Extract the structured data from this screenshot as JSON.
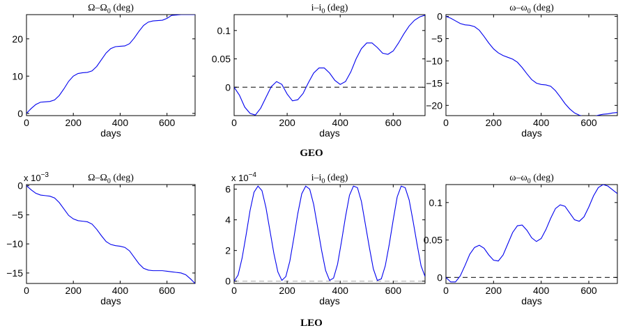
{
  "groups": [
    "GEO",
    "LEO"
  ],
  "chart_data": [
    {
      "type": "line",
      "group": "GEO",
      "title": "Ω–Ω0 (deg)",
      "title_parts": [
        "Ω–Ω",
        "0",
        " (deg)"
      ],
      "xlabel": "days",
      "ylabel": "",
      "multiplier": "",
      "xlim": [
        0,
        720
      ],
      "ylim": [
        -0.6,
        26.5
      ],
      "xticks": [
        0,
        200,
        400,
        600
      ],
      "yticks": [
        0,
        10,
        20
      ],
      "ytick_labels": [
        "0",
        "10",
        "20"
      ],
      "ref_line": null,
      "series": [
        {
          "color": "#0000ee",
          "x": [
            0,
            20,
            40,
            60,
            80,
            100,
            120,
            140,
            160,
            180,
            200,
            220,
            240,
            260,
            280,
            300,
            320,
            340,
            360,
            380,
            400,
            420,
            440,
            460,
            480,
            500,
            520,
            540,
            560,
            580,
            600,
            620,
            640,
            660,
            680,
            700,
            720
          ],
          "y": [
            0,
            1.3,
            2.4,
            3.0,
            3.1,
            3.2,
            3.6,
            4.8,
            6.6,
            8.6,
            10.0,
            10.7,
            10.9,
            11.0,
            11.4,
            12.6,
            14.4,
            16.2,
            17.4,
            17.9,
            18.0,
            18.1,
            18.7,
            20.2,
            22.0,
            23.6,
            24.5,
            24.8,
            24.9,
            25.0,
            25.5,
            26.3,
            26.4,
            26.5,
            26.5,
            26.5,
            26.5
          ]
        }
      ]
    },
    {
      "type": "line",
      "group": "GEO",
      "title": "i–i0 (deg)",
      "title_parts": [
        "i–i",
        "0",
        " (deg)"
      ],
      "xlabel": "days",
      "ylabel": "",
      "multiplier": "",
      "xlim": [
        0,
        720
      ],
      "ylim": [
        -0.05,
        0.128
      ],
      "xticks": [
        0,
        200,
        400,
        600
      ],
      "yticks": [
        0,
        0.05,
        0.1
      ],
      "ytick_labels": [
        "0",
        "0.05",
        "0.1"
      ],
      "ref_line": {
        "y": 0,
        "color": "#333333",
        "dash": "7,5"
      },
      "series": [
        {
          "color": "#0000ee",
          "x": [
            0,
            20,
            40,
            60,
            80,
            100,
            120,
            140,
            160,
            180,
            200,
            220,
            240,
            260,
            280,
            300,
            320,
            340,
            360,
            380,
            400,
            420,
            440,
            460,
            480,
            500,
            520,
            540,
            560,
            580,
            600,
            620,
            640,
            660,
            680,
            700,
            720
          ],
          "y": [
            0,
            -0.014,
            -0.035,
            -0.046,
            -0.049,
            -0.037,
            -0.018,
            0.001,
            0.01,
            0.005,
            -0.012,
            -0.024,
            -0.022,
            -0.011,
            0.008,
            0.025,
            0.034,
            0.034,
            0.025,
            0.012,
            0.005,
            0.01,
            0.027,
            0.05,
            0.068,
            0.078,
            0.078,
            0.07,
            0.06,
            0.058,
            0.064,
            0.078,
            0.094,
            0.108,
            0.118,
            0.124,
            0.127
          ]
        }
      ]
    },
    {
      "type": "line",
      "group": "GEO",
      "title": "ω–ω0 (deg)",
      "title_parts": [
        "ω–ω",
        "0",
        " (deg)"
      ],
      "xlabel": "days",
      "ylabel": "",
      "multiplier": "",
      "xlim": [
        0,
        720
      ],
      "ylim": [
        -22.3,
        0.4
      ],
      "xticks": [
        0,
        200,
        400,
        600
      ],
      "yticks": [
        0,
        -5,
        -10,
        -15,
        -20
      ],
      "ytick_labels": [
        "0",
        "−5",
        "−10",
        "−15",
        "−20"
      ],
      "ref_line": null,
      "series": [
        {
          "color": "#0000ee",
          "x": [
            0,
            20,
            40,
            60,
            80,
            100,
            120,
            140,
            160,
            180,
            200,
            220,
            240,
            260,
            280,
            300,
            320,
            340,
            360,
            380,
            400,
            420,
            440,
            460,
            480,
            500,
            520,
            540,
            560,
            580,
            600,
            620,
            640,
            660,
            680,
            700,
            720
          ],
          "y": [
            0,
            -0.4,
            -1.0,
            -1.6,
            -1.9,
            -2.0,
            -2.3,
            -3.1,
            -4.5,
            -6.0,
            -7.3,
            -8.2,
            -8.8,
            -9.2,
            -9.6,
            -10.3,
            -11.5,
            -12.9,
            -14.2,
            -15.0,
            -15.3,
            -15.4,
            -15.7,
            -16.7,
            -18.1,
            -19.6,
            -20.8,
            -21.7,
            -22.2,
            -22.5,
            -22.7,
            -22.5,
            -22.2,
            -22.0,
            -21.9,
            -21.7,
            -21.6
          ]
        }
      ]
    },
    {
      "type": "line",
      "group": "LEO",
      "title": "Ω–Ω0 (deg)",
      "title_parts": [
        "Ω–Ω",
        "0",
        " (deg)"
      ],
      "xlabel": "days",
      "ylabel": "",
      "multiplier": "x 10^-3",
      "multiplier_parts": [
        "x 10",
        "−3"
      ],
      "xlim": [
        0,
        720
      ],
      "ylim": [
        -16.8,
        0.2
      ],
      "xticks": [
        0,
        200,
        400,
        600
      ],
      "yticks": [
        0,
        -5,
        -10,
        -15
      ],
      "ytick_labels": [
        "0",
        "−5",
        "−10",
        "−15"
      ],
      "ref_line": null,
      "series": [
        {
          "color": "#0000ee",
          "x": [
            0,
            20,
            40,
            60,
            80,
            100,
            120,
            140,
            160,
            180,
            200,
            220,
            240,
            260,
            280,
            300,
            320,
            340,
            360,
            380,
            400,
            420,
            440,
            460,
            480,
            500,
            520,
            540,
            560,
            580,
            600,
            620,
            640,
            660,
            680,
            700,
            720
          ],
          "y": [
            0,
            -0.7,
            -1.3,
            -1.6,
            -1.7,
            -1.8,
            -2.1,
            -2.9,
            -4.0,
            -5.1,
            -5.7,
            -6.0,
            -6.1,
            -6.2,
            -6.6,
            -7.5,
            -8.6,
            -9.6,
            -10.1,
            -10.3,
            -10.4,
            -10.6,
            -11.2,
            -12.3,
            -13.4,
            -14.2,
            -14.5,
            -14.6,
            -14.6,
            -14.6,
            -14.7,
            -14.8,
            -14.9,
            -15.0,
            -15.3,
            -16.0,
            -16.8
          ]
        }
      ]
    },
    {
      "type": "line",
      "group": "LEO",
      "title": "i–i0 (deg)",
      "title_parts": [
        "i–i",
        "0",
        " (deg)"
      ],
      "xlabel": "days",
      "ylabel": "",
      "multiplier": "x 10^-4",
      "multiplier_parts": [
        "x 10",
        "−4"
      ],
      "xlim": [
        0,
        720
      ],
      "ylim": [
        -0.15,
        6.3
      ],
      "xticks": [
        0,
        200,
        400,
        600
      ],
      "yticks": [
        0,
        2,
        4,
        6
      ],
      "ytick_labels": [
        "0",
        "2",
        "4",
        "6"
      ],
      "ref_line": {
        "y": 0,
        "color": "#bbbbbb",
        "dash": "7,5"
      },
      "series": [
        {
          "color": "#0000ee",
          "x": [
            0,
            15,
            30,
            45,
            60,
            75,
            90,
            105,
            120,
            135,
            150,
            165,
            180,
            195,
            210,
            225,
            240,
            255,
            270,
            285,
            300,
            315,
            330,
            345,
            360,
            375,
            390,
            405,
            420,
            435,
            450,
            465,
            480,
            495,
            510,
            525,
            540,
            555,
            570,
            585,
            600,
            615,
            630,
            645,
            660,
            675,
            690,
            705,
            720
          ],
          "y": [
            0,
            0.4,
            1.5,
            3.0,
            4.6,
            5.8,
            6.2,
            5.9,
            4.8,
            3.3,
            1.8,
            0.6,
            0.05,
            0.3,
            1.3,
            2.8,
            4.4,
            5.7,
            6.2,
            6.0,
            5.0,
            3.5,
            2.0,
            0.7,
            0.05,
            0.2,
            1.1,
            2.6,
            4.2,
            5.6,
            6.2,
            6.1,
            5.2,
            3.7,
            2.2,
            0.8,
            0.05,
            0.15,
            1.0,
            2.4,
            4.0,
            5.5,
            6.2,
            6.1,
            5.3,
            3.9,
            2.4,
            1.0,
            0.3
          ]
        }
      ]
    },
    {
      "type": "line",
      "group": "LEO",
      "title": "ω–ω0 (deg)",
      "title_parts": [
        "ω–ω",
        "0",
        " (deg)"
      ],
      "xlabel": "days",
      "ylabel": "",
      "multiplier": "",
      "xlim": [
        0,
        720
      ],
      "ylim": [
        -0.008,
        0.124
      ],
      "xticks": [
        0,
        200,
        400,
        600
      ],
      "yticks": [
        0,
        0.05,
        0.1
      ],
      "ytick_labels": [
        "0",
        "0.05",
        "0.1"
      ],
      "ref_line": {
        "y": 0,
        "color": "#333333",
        "dash": "7,5"
      },
      "series": [
        {
          "color": "#0000ee",
          "x": [
            0,
            20,
            40,
            60,
            80,
            100,
            120,
            140,
            160,
            180,
            200,
            220,
            240,
            260,
            280,
            300,
            320,
            340,
            360,
            380,
            400,
            420,
            440,
            460,
            480,
            500,
            520,
            540,
            560,
            580,
            600,
            620,
            640,
            660,
            680,
            700,
            720
          ],
          "y": [
            0,
            -0.006,
            -0.006,
            0.002,
            0.016,
            0.031,
            0.04,
            0.043,
            0.039,
            0.03,
            0.023,
            0.022,
            0.03,
            0.045,
            0.06,
            0.069,
            0.07,
            0.063,
            0.053,
            0.048,
            0.052,
            0.064,
            0.079,
            0.092,
            0.097,
            0.095,
            0.086,
            0.077,
            0.075,
            0.081,
            0.094,
            0.109,
            0.12,
            0.124,
            0.122,
            0.117,
            0.112
          ]
        }
      ]
    }
  ]
}
